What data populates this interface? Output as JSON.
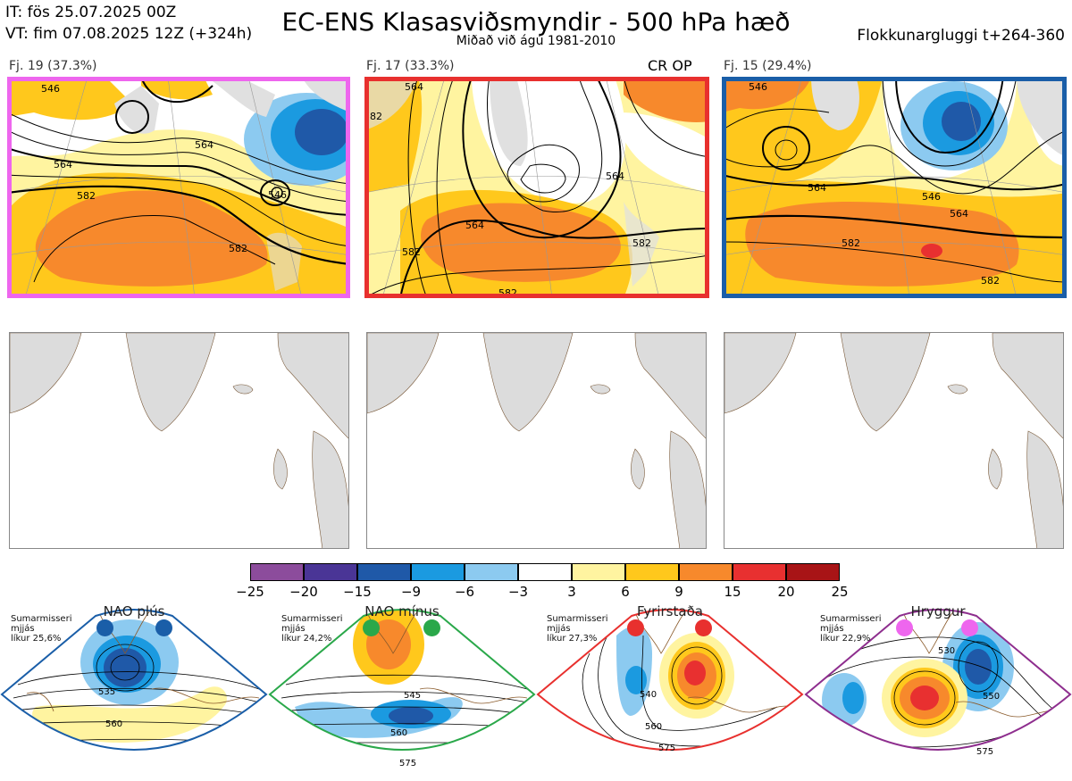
{
  "header": {
    "it": "IT: fös 25.07.2025 00Z",
    "vt": "VT: fim 07.08.2025 12Z  (+324h)",
    "title": "EC-ENS Klasasviðsmyndir - 500 hPa hæð",
    "subtitle": "Miðað við ágú 1981-2010",
    "window": "Flokkunargluggi t+264-360"
  },
  "clusters": [
    {
      "label": "Fj. 19 (37.3%)",
      "frame_color": "#ee66ee",
      "contours": [
        "546",
        "564",
        "564",
        "582",
        "582",
        "546"
      ]
    },
    {
      "label": "Fj. 17 (33.3%)",
      "frame_color": "#e8302e",
      "extra": "CR OP",
      "contours": [
        "82",
        "564",
        "564",
        "564",
        "582",
        "582",
        "582"
      ]
    },
    {
      "label": "Fj. 15 (29.4%)",
      "frame_color": "#1a5ea8",
      "contours": [
        "546",
        "564",
        "546",
        "564",
        "582",
        "582"
      ]
    }
  ],
  "colorbar": {
    "ticks": [
      "−25",
      "−20",
      "−15",
      "−9",
      "−6",
      "−3",
      "3",
      "6",
      "9",
      "15",
      "20",
      "25"
    ],
    "colors": [
      "#8c4c9c",
      "#4a3596",
      "#1f59a8",
      "#1b9ae0",
      "#8ccaf0",
      "#ffffff",
      "#fff4a0",
      "#ffc81c",
      "#f7892c",
      "#e83030",
      "#a81416"
    ]
  },
  "regimes": [
    {
      "title": "NAO plús",
      "note": [
        "Sumarmisseri",
        "mjjás",
        "líkur 25,6%"
      ],
      "frame_color": "#1a5ea8",
      "dot_color": "#1a5ea8",
      "contours": [
        "535",
        "560"
      ]
    },
    {
      "title": "NAO mínus",
      "note": [
        "Sumarmisseri",
        "mjjás",
        "líkur 24,2%"
      ],
      "frame_color": "#2aa84a",
      "dot_color": "#2aa84a",
      "contours": [
        "545",
        "560",
        "575"
      ]
    },
    {
      "title": "Fyrirstaða",
      "note": [
        "Sumarmisseri",
        "mjjás",
        "líkur 27,3%"
      ],
      "frame_color": "#e8302e",
      "dot_color": "#e8302e",
      "contours": [
        "540",
        "560",
        "575"
      ]
    },
    {
      "title": "Hryggur",
      "note": [
        "Sumarmisseri",
        "mjjás",
        "líkur 22,9%"
      ],
      "frame_color": "#8e2e8e",
      "dot_color": "#ee66ee",
      "contours": [
        "530",
        "550",
        "575"
      ]
    }
  ]
}
